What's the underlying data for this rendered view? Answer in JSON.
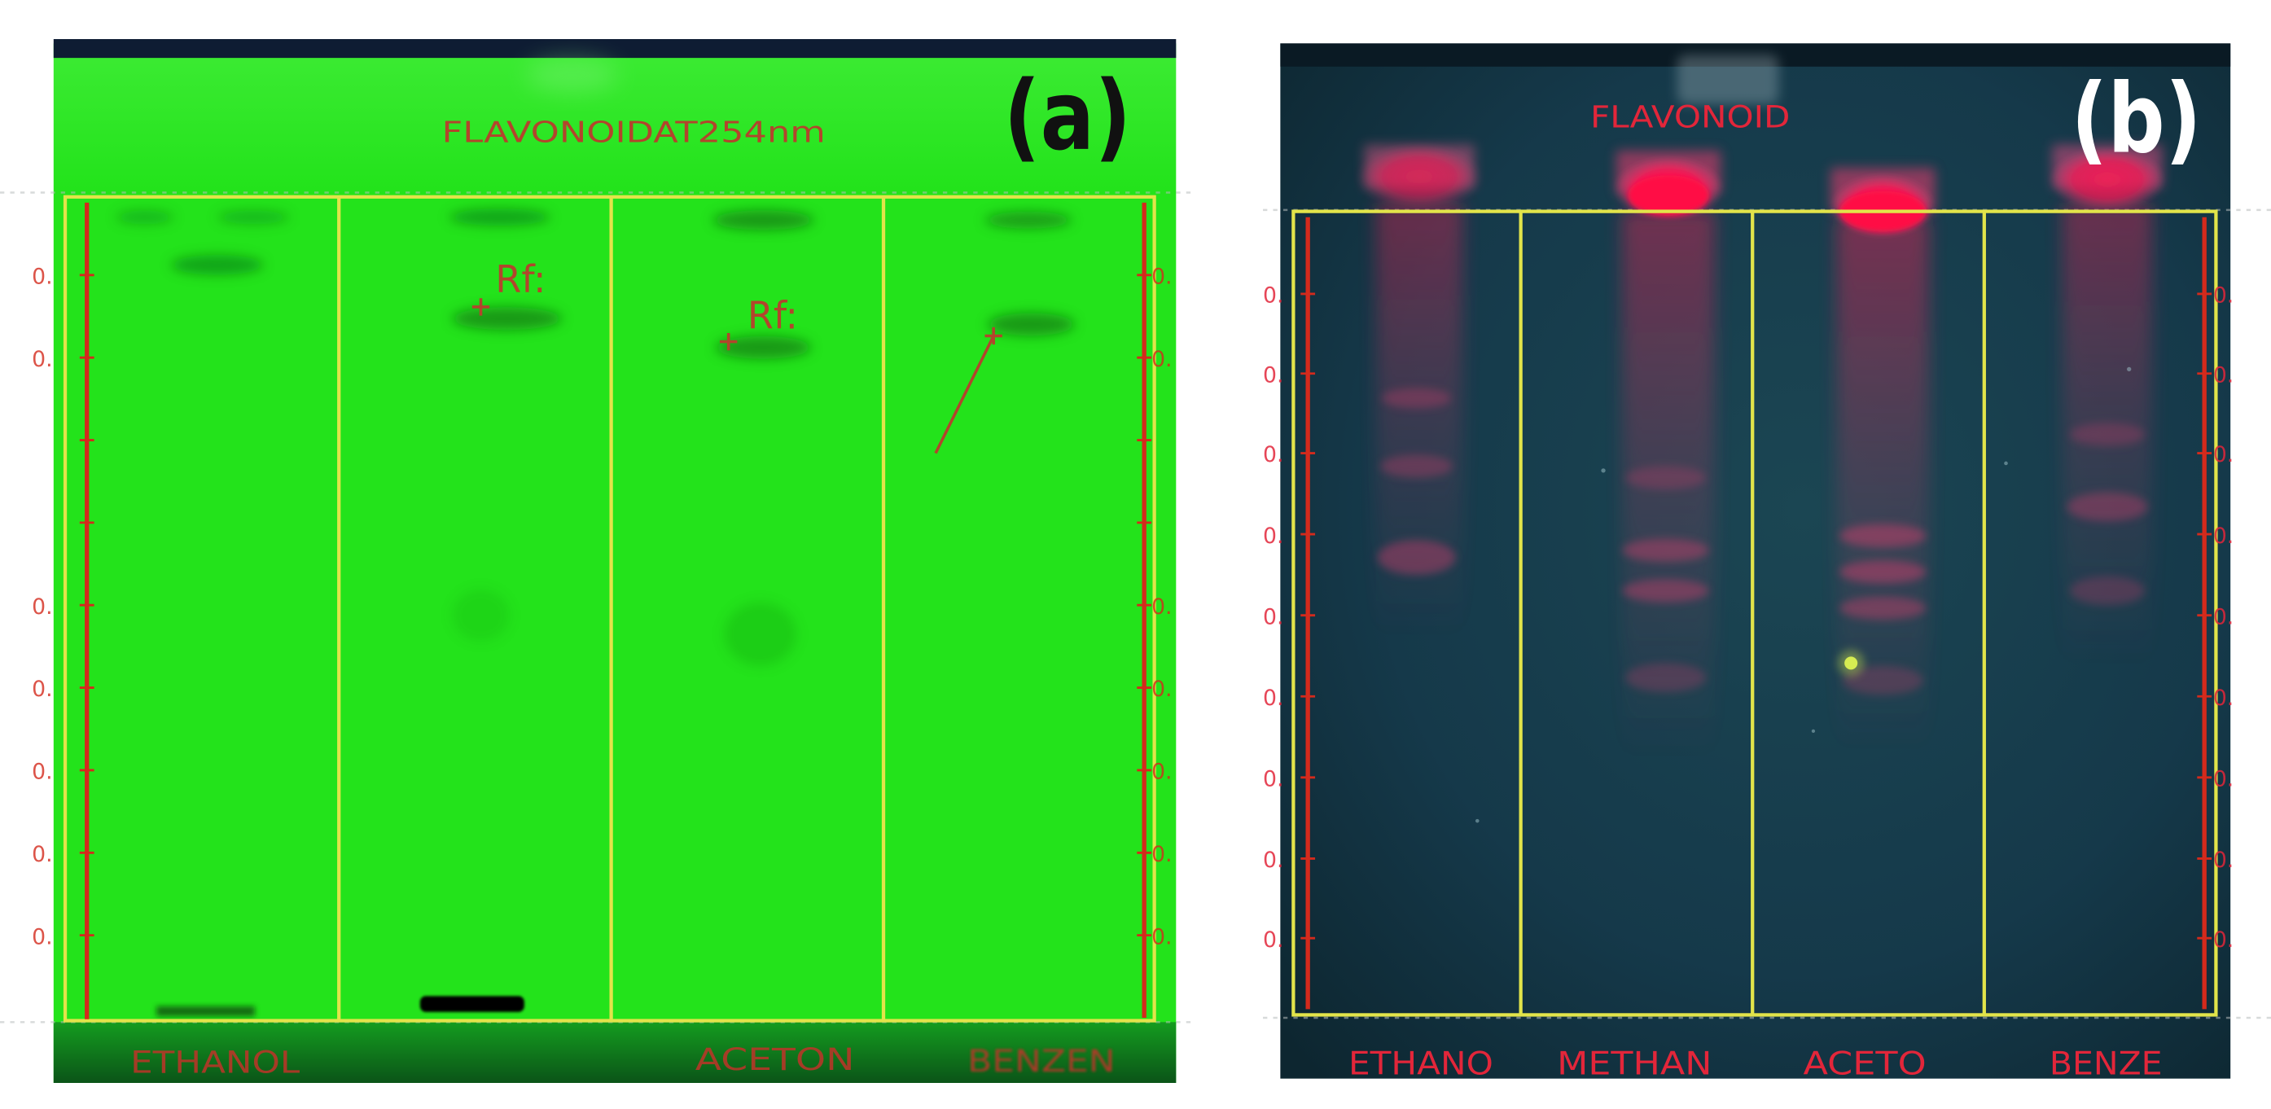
{
  "figure": {
    "panel_a": {
      "label": "(a)",
      "title": "FLAVONOIDAT254nm",
      "tick_label": "0.",
      "rf_annotations": [
        "Rf:",
        "Rf:"
      ],
      "lane_labels": {
        "lane1": "ETHANOL",
        "lane3": "ACETON",
        "lane4": "BENZEN"
      }
    },
    "panel_b": {
      "label": "(b)",
      "title": "FLAVONOID",
      "tick_label": "0.",
      "lane_labels": {
        "lane1": "ETHANO",
        "lane2": "METHAN",
        "lane3": "ACETO",
        "lane4": "BENZE"
      }
    }
  },
  "colors": {
    "plate_a_green": "#23e31b",
    "plate_b_teal": "#15394a",
    "lane_frame_yellow": "#e2e44a",
    "ruler_red": "#d42a1c",
    "annotation_a_red": "#b2452c",
    "label_b_red": "#e2263a",
    "spot_b_magenta": "#ff1a55"
  }
}
